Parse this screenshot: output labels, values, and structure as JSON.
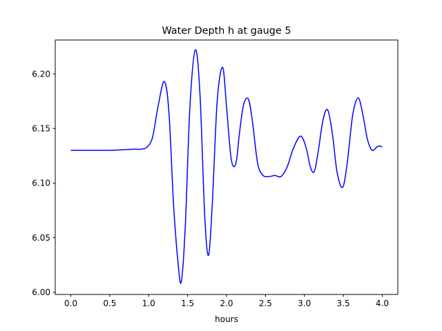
{
  "chart_data": {
    "type": "line",
    "title": "Water Depth h at gauge 5",
    "xlabel": "hours",
    "ylabel": "",
    "xlim": [
      -0.2,
      4.2
    ],
    "ylim": [
      5.998,
      6.231
    ],
    "xticks": [
      0.0,
      0.5,
      1.0,
      1.5,
      2.0,
      2.5,
      3.0,
      3.5,
      4.0
    ],
    "xtick_labels": [
      "0.0",
      "0.5",
      "1.0",
      "1.5",
      "2.0",
      "2.5",
      "3.0",
      "3.5",
      "4.0"
    ],
    "yticks": [
      6.0,
      6.05,
      6.1,
      6.15,
      6.2
    ],
    "ytick_labels": [
      "6.00",
      "6.05",
      "6.10",
      "6.15",
      "6.20"
    ],
    "grid": false,
    "series": [
      {
        "color": "#0000ff",
        "x": [
          0.0,
          0.5,
          0.8,
          0.9,
          0.98,
          1.05,
          1.12,
          1.2,
          1.26,
          1.32,
          1.38,
          1.42,
          1.47,
          1.53,
          1.6,
          1.66,
          1.72,
          1.77,
          1.82,
          1.88,
          1.95,
          2.0,
          2.06,
          2.12,
          2.17,
          2.22,
          2.28,
          2.33,
          2.4,
          2.47,
          2.55,
          2.62,
          2.7,
          2.78,
          2.86,
          2.95,
          3.02,
          3.08,
          3.13,
          3.18,
          3.24,
          3.3,
          3.36,
          3.42,
          3.49,
          3.55,
          3.62,
          3.69,
          3.75,
          3.81,
          3.87,
          3.93,
          3.97,
          4.0
        ],
        "y": [
          6.13,
          6.13,
          6.131,
          6.131,
          6.133,
          6.142,
          6.17,
          6.193,
          6.165,
          6.08,
          6.025,
          6.01,
          6.06,
          6.17,
          6.222,
          6.18,
          6.07,
          6.034,
          6.085,
          6.175,
          6.206,
          6.17,
          6.122,
          6.118,
          6.148,
          6.172,
          6.177,
          6.158,
          6.118,
          6.107,
          6.106,
          6.107,
          6.106,
          6.115,
          6.132,
          6.143,
          6.133,
          6.114,
          6.111,
          6.13,
          6.158,
          6.167,
          6.145,
          6.11,
          6.096,
          6.118,
          6.162,
          6.178,
          6.163,
          6.14,
          6.13,
          6.133,
          6.134,
          6.133
        ]
      }
    ]
  }
}
